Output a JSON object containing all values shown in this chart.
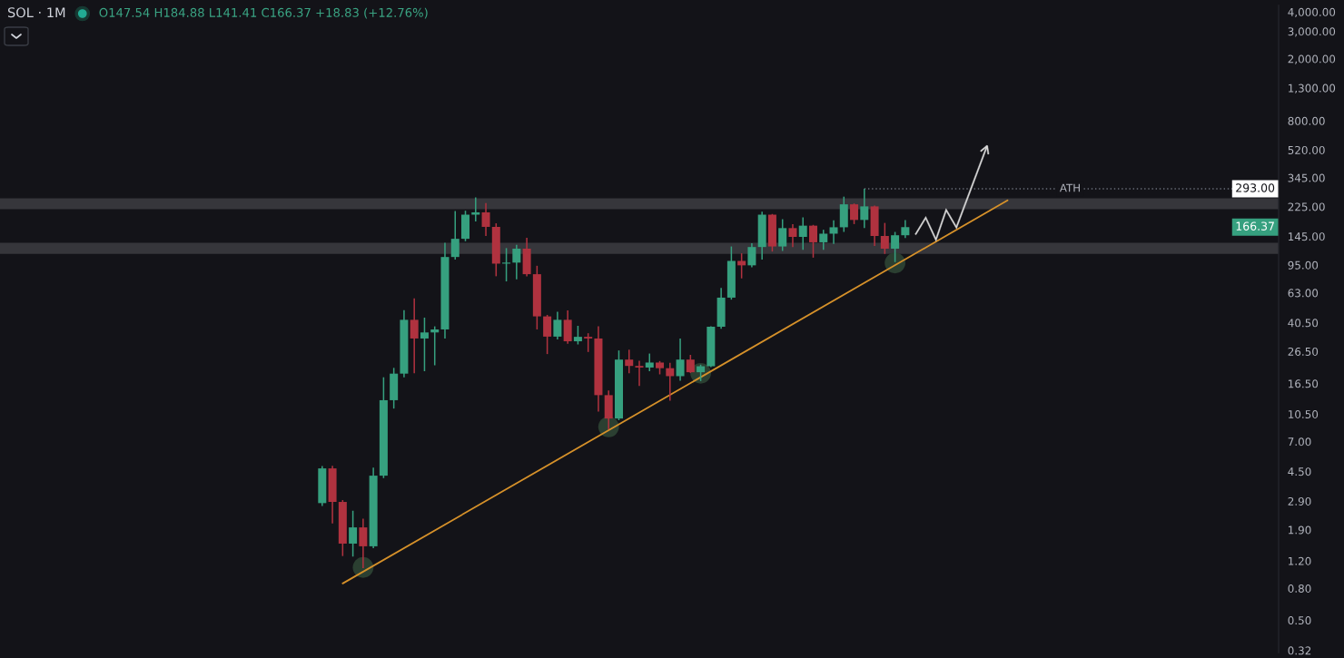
{
  "chart_data": {
    "type": "candlestick",
    "title": "SOL · 1M",
    "subtitle": "O147.54 H184.88 L141.41 C166.37 +18.83 (+12.76%)",
    "categories": [
      null,
      null,
      null,
      null,
      null,
      null,
      null,
      null,
      null,
      null,
      null,
      null,
      null,
      null,
      null,
      null,
      null,
      null,
      null,
      null,
      null,
      null,
      null,
      null,
      null,
      null,
      null,
      null,
      null,
      null,
      null,
      null,
      null,
      null,
      null,
      null,
      null,
      null,
      null,
      null,
      null,
      null,
      null,
      null,
      null,
      null,
      null,
      null,
      null,
      null,
      null,
      null,
      null,
      null,
      null,
      null,
      null,
      null,
      null,
      null,
      null,
      null,
      null,
      null,
      null,
      null,
      null,
      null,
      null,
      null,
      null,
      null,
      null,
      null,
      null,
      null,
      null,
      null,
      null,
      null,
      null,
      null,
      null,
      null,
      null,
      null,
      null,
      null,
      null,
      null,
      null,
      null,
      null,
      null,
      null,
      null,
      null,
      null,
      null,
      null,
      null,
      null,
      null,
      null,
      null,
      null,
      null,
      null,
      null,
      null,
      null,
      null,
      null,
      null,
      null,
      null,
      null,
      null,
      null,
      null,
      null,
      null,
      null,
      null,
      null
    ],
    "ohlc": [
      null,
      null,
      null,
      null,
      null,
      null,
      null,
      null,
      null,
      null,
      null,
      null,
      null,
      null,
      null,
      null,
      null,
      null,
      null,
      null,
      null,
      null,
      null,
      null,
      null,
      null,
      null,
      null,
      null,
      null,
      null,
      [
        2.82,
        4.88,
        2.7,
        4.71
      ],
      [
        4.71,
        4.9,
        2.09,
        2.87
      ],
      [
        2.87,
        2.95,
        1.29,
        1.55
      ],
      [
        1.55,
        2.52,
        1.28,
        1.97
      ],
      [
        1.97,
        2.24,
        1.08,
        1.49
      ],
      [
        1.49,
        4.77,
        1.45,
        4.23
      ],
      [
        4.23,
        18.1,
        4.08,
        12.9
      ],
      [
        12.9,
        20.8,
        11.4,
        19.1
      ],
      [
        19.1,
        48.8,
        18.1,
        42.3
      ],
      [
        42.3,
        58.1,
        19.2,
        32.1
      ],
      [
        32.1,
        43.7,
        19.8,
        35.1
      ],
      [
        35.1,
        38.4,
        21.6,
        36.7
      ],
      [
        36.7,
        132,
        32.1,
        107
      ],
      [
        107,
        211,
        103,
        140
      ],
      [
        140,
        212,
        135,
        200
      ],
      [
        200,
        258,
        181,
        207
      ],
      [
        207,
        237,
        146,
        167
      ],
      [
        167,
        176,
        80.5,
        97
      ],
      [
        97,
        122,
        74.6,
        98.5
      ],
      [
        98.5,
        128,
        77,
        121
      ],
      [
        121,
        142,
        80.5,
        83
      ],
      [
        83,
        94,
        36.7,
        44.5
      ],
      [
        44.5,
        45.5,
        25.5,
        33
      ],
      [
        33,
        47.7,
        31.7,
        42.3
      ],
      [
        42.3,
        48.6,
        29.7,
        30.8
      ],
      [
        30.8,
        38.7,
        29.4,
        32.9
      ],
      [
        32.9,
        34.7,
        26.3,
        32.1
      ],
      [
        32.1,
        38.4,
        10.9,
        13.9
      ],
      [
        13.9,
        14.9,
        8.4,
        9.84
      ],
      [
        9.84,
        26.9,
        9.6,
        23.5
      ],
      [
        23.5,
        27.2,
        19.2,
        21.4
      ],
      [
        21.4,
        23.1,
        15.9,
        20.9
      ],
      [
        20.9,
        25.7,
        19.8,
        22.5
      ],
      [
        22.5,
        23,
        18.9,
        20.7
      ],
      [
        20.7,
        22.4,
        12.8,
        18.4
      ],
      [
        18.4,
        32.1,
        17.2,
        23.5
      ],
      [
        23.5,
        25.2,
        19.3,
        19.5
      ],
      [
        19.5,
        21.8,
        17.1,
        21.3
      ],
      [
        21.3,
        38.5,
        21,
        38.2
      ],
      [
        38.2,
        67.8,
        37,
        58.7
      ],
      [
        58.7,
        125,
        57,
        101
      ],
      [
        101,
        113,
        78,
        94.6
      ],
      [
        94.6,
        131,
        92,
        124
      ],
      [
        124,
        209,
        103,
        200
      ],
      [
        200,
        202,
        116,
        125
      ],
      [
        125,
        187,
        117,
        164
      ],
      [
        164,
        174,
        124,
        144
      ],
      [
        144,
        192,
        119,
        170
      ],
      [
        170,
        172,
        106,
        133
      ],
      [
        133,
        160,
        119,
        151
      ],
      [
        151,
        184,
        130,
        166
      ],
      [
        166,
        261,
        155,
        233
      ],
      [
        233,
        236,
        174,
        185
      ],
      [
        185,
        293,
        164,
        226
      ],
      [
        226,
        229,
        126,
        146
      ],
      [
        146,
        177,
        112,
        121
      ],
      [
        121,
        155,
        99.3,
        147.54
      ],
      [
        147.54,
        184.88,
        141.41,
        166.37
      ],
      null,
      null,
      null,
      null,
      null,
      null,
      null,
      null,
      null,
      null,
      null,
      null,
      null,
      null,
      null,
      null,
      null,
      null,
      null,
      null,
      null,
      null,
      null,
      null,
      null,
      null,
      null,
      null,
      null,
      null,
      null,
      null,
      null,
      null,
      null,
      null
    ],
    "colors": [
      null,
      null,
      null,
      null,
      null,
      null,
      null,
      null,
      null,
      null,
      null,
      null,
      null,
      null,
      null,
      null,
      null,
      null,
      null,
      null,
      null,
      null,
      null,
      null,
      null,
      null,
      null,
      null,
      null,
      null,
      null,
      "#36a07f",
      "#b0323f",
      "#b0323f",
      "#36a07f",
      "#b0323f",
      "#36a07f",
      "#36a07f",
      "#36a07f",
      "#36a07f",
      "#b0323f",
      "#36a07f",
      "#36a07f",
      "#36a07f",
      "#36a07f",
      "#36a07f",
      "#36a07f",
      "#b0323f",
      "#b0323f",
      "#36a07f",
      "#36a07f",
      "#b0323f",
      "#b0323f",
      "#b0323f",
      "#36a07f",
      "#b0323f",
      "#36a07f",
      "#b0323f",
      "#b0323f",
      "#b0323f",
      "#36a07f",
      "#b0323f",
      "#b0323f",
      "#36a07f",
      "#b0323f",
      "#b0323f",
      "#36a07f",
      "#b0323f",
      "#36a07f",
      "#36a07f",
      "#36a07f",
      "#36a07f",
      "#b0323f",
      "#36a07f",
      "#36a07f",
      "#b0323f",
      "#36a07f",
      "#b0323f",
      "#36a07f",
      "#b0323f",
      "#36a07f",
      "#36a07f",
      "#36a07f",
      "#b0323f",
      "#36a07f",
      "#b0323f",
      "#b0323f",
      "#36a07f",
      "#36a07f",
      null,
      null,
      null,
      null,
      null,
      null,
      null,
      null,
      null,
      null,
      null,
      null,
      null,
      null,
      null,
      null,
      null,
      null,
      null,
      null,
      null,
      null,
      null,
      null,
      null,
      null,
      null,
      null,
      null,
      null,
      null,
      null,
      null,
      null,
      null,
      null
    ],
    "series": [
      {
        "type": "scatter",
        "color": "#2b3f31",
        "marker": "circle",
        "values": [
          null,
          null,
          null,
          null,
          null,
          null,
          null,
          null,
          null,
          null,
          null,
          null,
          null,
          null,
          null,
          null,
          null,
          null,
          null,
          null,
          null,
          null,
          null,
          null,
          null,
          null,
          null,
          null,
          null,
          null,
          null,
          null,
          null,
          null,
          null,
          1.09,
          null,
          null,
          null,
          null,
          null,
          null,
          null,
          null,
          null,
          null,
          null,
          null,
          null,
          null,
          null,
          null,
          null,
          null,
          null,
          null,
          null,
          null,
          null,
          8.7,
          null,
          null,
          null,
          null,
          null,
          null,
          null,
          null,
          19.2,
          null,
          null,
          null,
          null,
          null,
          null,
          null,
          null,
          null,
          null,
          null,
          null,
          null,
          null,
          null,
          null,
          null,
          null,
          98,
          null,
          null,
          null,
          null,
          null,
          null,
          null,
          null,
          null,
          null,
          null,
          null,
          null,
          null,
          null,
          null,
          null,
          null,
          null,
          null,
          null,
          null,
          null,
          null,
          null,
          null,
          null,
          null,
          null,
          null,
          null,
          null,
          null,
          null,
          null,
          null,
          null
        ]
      },
      {
        "type": "line",
        "color": "#d6912a",
        "values": [
          null,
          null,
          null,
          null,
          null,
          null,
          null,
          null,
          null,
          null,
          null,
          null,
          null,
          null,
          null,
          null,
          null,
          null,
          null,
          null,
          null,
          null,
          null,
          null,
          null,
          null,
          null,
          null,
          null,
          null,
          null,
          null,
          null,
          0.86,
          null,
          null,
          null,
          null,
          null,
          null,
          null,
          null,
          null,
          null,
          null,
          null,
          null,
          null,
          null,
          null,
          null,
          null,
          null,
          null,
          null,
          null,
          null,
          null,
          null,
          null,
          null,
          null,
          null,
          null,
          null,
          null,
          null,
          null,
          null,
          null,
          null,
          null,
          null,
          null,
          null,
          null,
          null,
          null,
          null,
          null,
          null,
          null,
          null,
          null,
          null,
          null,
          null,
          null,
          null,
          null,
          null,
          null,
          null,
          null,
          null,
          null,
          null,
          null,
          247,
          null,
          null,
          null,
          null,
          null,
          null,
          null,
          null,
          null,
          null,
          null,
          null,
          null,
          null,
          null,
          null,
          null,
          null,
          null,
          null,
          null,
          null,
          null,
          null,
          null,
          null
        ]
      }
    ],
    "bands": [
      {
        "axis": "y",
        "from": 217,
        "to": 255,
        "color": "#36363b"
      },
      {
        "axis": "y",
        "from": 112,
        "to": 132,
        "color": "#36363b"
      }
    ],
    "ref_lines": [
      {
        "axis": "y",
        "value": 293,
        "label": "ATH",
        "color": "#6a6d78",
        "line_style": "dotted"
      }
    ],
    "annotations": [
      {
        "text": "293.00",
        "y": 293
      },
      "166.37"
    ],
    "log": true,
    "ylim": [
      0.31,
      4400
    ],
    "yticks": [
      {
        "value": 4000,
        "label": "4,000.00"
      },
      {
        "value": 3000,
        "label": "3,000.00"
      },
      {
        "value": 2000,
        "label": "2,000.00"
      },
      {
        "value": 1300,
        "label": "1,300.00"
      },
      {
        "value": 800,
        "label": "800.00"
      },
      {
        "value": 520,
        "label": "520.00"
      },
      {
        "value": 345,
        "label": "345.00"
      },
      {
        "value": 225,
        "label": "225.00"
      },
      {
        "value": 145,
        "label": "145.00"
      },
      {
        "value": 95,
        "label": "95.00"
      },
      {
        "value": 63,
        "label": "63.00"
      },
      {
        "value": 40.5,
        "label": "40.50"
      },
      {
        "value": 26.5,
        "label": "26.50"
      },
      {
        "value": 16.5,
        "label": "16.50"
      },
      {
        "value": 10.5,
        "label": "10.50"
      },
      {
        "value": 7,
        "label": "7.00"
      },
      {
        "value": 4.5,
        "label": "4.50"
      },
      {
        "value": 2.9,
        "label": "2.90"
      },
      {
        "value": 1.9,
        "label": "1.90"
      },
      {
        "value": 1.2,
        "label": "1.20"
      },
      {
        "value": 0.8,
        "label": "0.80"
      },
      {
        "value": 0.5,
        "label": "0.50"
      },
      {
        "value": 0.32,
        "label": "0.32"
      }
    ],
    "tick_labels": "y"
  }
}
